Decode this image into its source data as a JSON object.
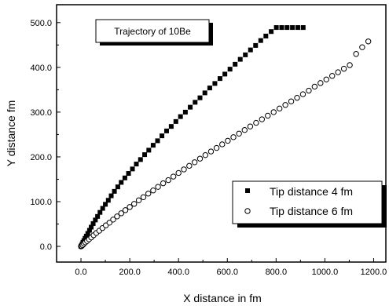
{
  "chart_data": {
    "type": "scatter",
    "title": "Trajectory of 10Be",
    "xlabel": "X distance in fm",
    "ylabel": "Y distance fm",
    "xlim": [
      -100,
      1250
    ],
    "ylim": [
      -35,
      540
    ],
    "xticks": [
      "0.0",
      "200.0",
      "400.0",
      "600.0",
      "800.0",
      "1000.0",
      "1200.0"
    ],
    "xtick_values": [
      0,
      200,
      400,
      600,
      800,
      1000,
      1200
    ],
    "yticks": [
      "0.0",
      "100.0",
      "200.0",
      "300.0",
      "400.0",
      "500.0"
    ],
    "ytick_values": [
      0,
      100,
      200,
      300,
      400,
      500
    ],
    "grid": false,
    "legend_position": "bottom-right",
    "series": [
      {
        "name": "Tip distance 4 fm",
        "marker": "filled-square",
        "color": "#000000",
        "x": [
          0,
          2,
          5,
          8,
          12,
          17,
          22,
          28,
          35,
          42,
          50,
          59,
          68,
          78,
          89,
          100,
          112,
          124,
          137,
          151,
          165,
          180,
          195,
          211,
          227,
          244,
          261,
          278,
          296,
          314,
          332,
          351,
          370,
          389,
          408,
          428,
          448,
          468,
          488,
          508,
          528,
          549,
          570,
          590,
          611,
          632,
          653,
          674,
          695,
          716,
          737,
          758,
          780,
          801,
          823,
          845,
          867,
          889,
          911
        ],
        "y": [
          0,
          2,
          5,
          9,
          13,
          18,
          23,
          29,
          36,
          43,
          51,
          59,
          67,
          76,
          85,
          94,
          103,
          113,
          123,
          133,
          143,
          153,
          163,
          173,
          184,
          194,
          205,
          215,
          226,
          236,
          247,
          258,
          268,
          279,
          290,
          300,
          311,
          322,
          332,
          343,
          354,
          364,
          375,
          385,
          396,
          407,
          418,
          428,
          439,
          449,
          460,
          470,
          480,
          489,
          489,
          489,
          489,
          489,
          489
        ]
      },
      {
        "name": "Tip distance 6 fm",
        "marker": "open-circle",
        "color": "#000000",
        "x": [
          0,
          3,
          7,
          12,
          18,
          25,
          33,
          42,
          52,
          63,
          75,
          88,
          102,
          117,
          132,
          148,
          165,
          182,
          200,
          218,
          237,
          256,
          276,
          296,
          316,
          337,
          358,
          379,
          400,
          422,
          444,
          466,
          488,
          510,
          533,
          556,
          579,
          602,
          625,
          648,
          671,
          694,
          718,
          742,
          766,
          790,
          814,
          838,
          862,
          886,
          910,
          934,
          958,
          982,
          1006,
          1030,
          1054,
          1078,
          1102,
          1128,
          1153,
          1178
        ],
        "y": [
          0,
          1,
          3,
          6,
          9,
          12,
          16,
          20,
          25,
          30,
          35,
          41,
          47,
          53,
          60,
          67,
          74,
          81,
          88,
          95,
          103,
          110,
          118,
          125,
          133,
          141,
          148,
          156,
          164,
          172,
          180,
          188,
          196,
          204,
          212,
          220,
          228,
          236,
          244,
          252,
          260,
          268,
          276,
          284,
          292,
          300,
          308,
          316,
          324,
          332,
          340,
          348,
          357,
          365,
          373,
          381,
          389,
          397,
          405,
          430,
          445,
          458
        ]
      }
    ]
  }
}
